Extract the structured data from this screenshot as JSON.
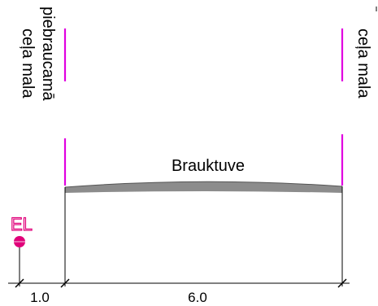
{
  "labels": {
    "left_edge_line1": "piebraucamā",
    "left_edge_line2": "ceļa mala",
    "right_edge": "ceļa mala",
    "carriageway": "Brauktuve",
    "elevation_marker": "EL"
  },
  "dimensions": {
    "left_width": "1.0",
    "main_width": "6.0"
  },
  "colors": {
    "edge_marker": "#e000e0",
    "elevation": "#e0007a",
    "road_surface": "#8c8c8c",
    "lines": "#000000"
  }
}
